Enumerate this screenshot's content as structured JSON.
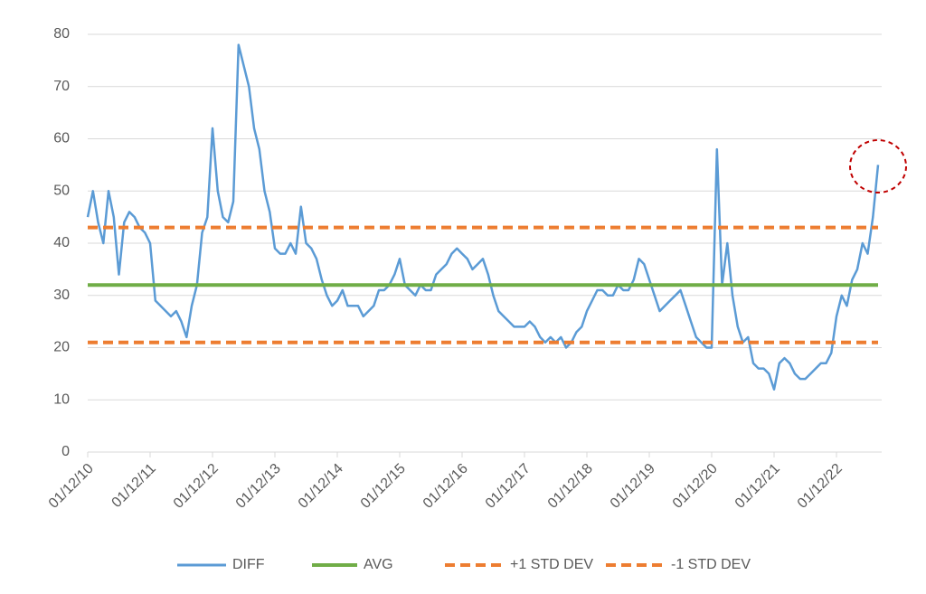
{
  "chart_data": {
    "type": "line",
    "categories": [
      "01/12/10",
      null,
      null,
      null,
      null,
      null,
      null,
      null,
      null,
      null,
      null,
      null,
      "01/12/11",
      null,
      null,
      null,
      null,
      null,
      null,
      null,
      null,
      null,
      null,
      null,
      "01/12/12",
      null,
      null,
      null,
      null,
      null,
      null,
      null,
      null,
      null,
      null,
      null,
      "01/12/13",
      null,
      null,
      null,
      null,
      null,
      null,
      null,
      null,
      null,
      null,
      null,
      "01/12/14",
      null,
      null,
      null,
      null,
      null,
      null,
      null,
      null,
      null,
      null,
      null,
      "01/12/15",
      null,
      null,
      null,
      null,
      null,
      null,
      null,
      null,
      null,
      null,
      null,
      "01/12/16",
      null,
      null,
      null,
      null,
      null,
      null,
      null,
      null,
      null,
      null,
      null,
      "01/12/17",
      null,
      null,
      null,
      null,
      null,
      null,
      null,
      null,
      null,
      null,
      null,
      "01/12/18",
      null,
      null,
      null,
      null,
      null,
      null,
      null,
      null,
      null,
      null,
      null,
      "01/12/19",
      null,
      null,
      null,
      null,
      null,
      null,
      null,
      null,
      null,
      null,
      null,
      "01/12/20",
      null,
      null,
      null,
      null,
      null,
      null,
      null,
      null,
      null,
      null,
      null,
      "01/12/21",
      null,
      null,
      null,
      null,
      null,
      null,
      null,
      null,
      null,
      null,
      null,
      "01/12/22",
      null,
      null,
      null,
      null,
      null,
      null,
      null,
      null
    ],
    "series": [
      {
        "name": "DIFF",
        "color": "#5b9bd5",
        "values": [
          45,
          50,
          44,
          40,
          50,
          45,
          34,
          44,
          46,
          45,
          43,
          42,
          40,
          29,
          28,
          27,
          26,
          27,
          25,
          22,
          28,
          32,
          42,
          45,
          62,
          50,
          45,
          44,
          48,
          78,
          74,
          70,
          62,
          58,
          50,
          46,
          39,
          38,
          38,
          40,
          38,
          47,
          40,
          39,
          37,
          33,
          30,
          28,
          29,
          31,
          28,
          28,
          28,
          26,
          27,
          28,
          31,
          31,
          32,
          34,
          37,
          32,
          31,
          30,
          32,
          31,
          31,
          34,
          35,
          36,
          38,
          39,
          38,
          37,
          35,
          36,
          37,
          34,
          30,
          27,
          26,
          25,
          24,
          24,
          24,
          25,
          24,
          22,
          21,
          22,
          21,
          22,
          20,
          21,
          23,
          24,
          27,
          29,
          31,
          31,
          30,
          30,
          32,
          31,
          31,
          33,
          37,
          36,
          33,
          30,
          27,
          28,
          29,
          30,
          31,
          28,
          25,
          22,
          21,
          20,
          20,
          58,
          32,
          40,
          30,
          24,
          21,
          22,
          17,
          16,
          16,
          15,
          12,
          17,
          18,
          17,
          15,
          14,
          14,
          15,
          16,
          17,
          17,
          19,
          26,
          30,
          28,
          33,
          35,
          40,
          38,
          45,
          55
        ]
      },
      {
        "name": "AVG",
        "color": "#70ad47",
        "value": 32
      },
      {
        "name": "+1 STD DEV",
        "color": "#ed7d31",
        "value": 43,
        "dashed": true
      },
      {
        "name": "-1 STD DEV",
        "color": "#ed7d31",
        "value": 21,
        "dashed": true
      }
    ],
    "ylim": [
      0,
      80
    ],
    "yticks": [
      0,
      10,
      20,
      30,
      40,
      50,
      60,
      70,
      80
    ],
    "grid": true,
    "legend": "bottom"
  }
}
